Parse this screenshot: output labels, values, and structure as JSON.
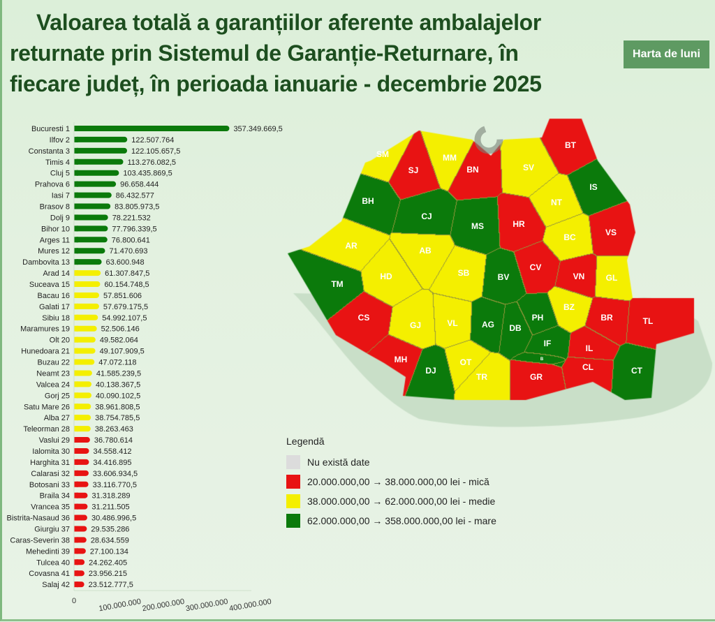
{
  "header": {
    "title_lines": [
      "Valoarea totală a garanțiilor aferente ambalajelor",
      "returnate prin Sistemul de Garanție-Returnare, în",
      "fiecare județ, în perioada ianuarie - decembrie 2025"
    ],
    "button_label": "Harta de luni"
  },
  "colors": {
    "mica": "#e81313",
    "medie": "#f4ef00",
    "mare": "#0b7a0b",
    "no_data": "#dcdcdc",
    "title": "#1d4e1f",
    "button": "#5e9a62"
  },
  "chart_data": {
    "type": "bar",
    "orientation": "horizontal",
    "categories": [
      "Bucuresti 1",
      "Ilfov 2",
      "Constanta 3",
      "Timis 4",
      "Cluj 5",
      "Prahova 6",
      "Iasi 7",
      "Brasov 8",
      "Dolj 9",
      "Bihor 10",
      "Arges 11",
      "Mures 12",
      "Dambovita 13",
      "Arad 14",
      "Suceava 15",
      "Bacau 16",
      "Galati 17",
      "Sibiu 18",
      "Maramures 19",
      "Olt 20",
      "Hunedoara 21",
      "Buzau 22",
      "Neamt 23",
      "Valcea 24",
      "Gorj 25",
      "Satu Mare 26",
      "Alba 27",
      "Teleorman 28",
      "Vaslui 29",
      "Ialomita 30",
      "Harghita 31",
      "Calarasi 32",
      "Botosani 33",
      "Braila 34",
      "Vrancea 35",
      "Bistrita-Nasaud 36",
      "Giurgiu 37",
      "Caras-Severin 38",
      "Mehedinti 39",
      "Tulcea 40",
      "Covasna 41",
      "Salaj 42"
    ],
    "values": [
      357349669.5,
      122507764,
      122105657.5,
      113276082.5,
      103435869.5,
      96658444,
      86432577,
      83805973.5,
      78221532,
      77796339.5,
      76800641,
      71470693,
      63600948,
      61307847.5,
      60154748.5,
      57851606,
      57679175.5,
      54992107.5,
      52506146,
      49582064,
      49107909.5,
      47072118,
      41585239.5,
      40138367.5,
      40090102.5,
      38961808.5,
      38754785.5,
      38263463,
      36780614,
      34558412,
      34416895,
      33606934.5,
      33116770.5,
      31318289,
      31211505,
      30486996.5,
      29535286,
      28634559,
      27100134,
      24262405,
      23956215,
      23512777.5
    ],
    "value_labels": [
      "357.349.669,5",
      "122.507.764",
      "122.105.657,5",
      "113.276.082,5",
      "103.435.869,5",
      "96.658.444",
      "86.432.577",
      "83.805.973,5",
      "78.221.532",
      "77.796.339,5",
      "76.800.641",
      "71.470.693",
      "63.600.948",
      "61.307.847,5",
      "60.154.748,5",
      "57.851.606",
      "57.679.175,5",
      "54.992.107,5",
      "52.506.146",
      "49.582.064",
      "49.107.909,5",
      "47.072.118",
      "41.585.239,5",
      "40.138.367,5",
      "40.090.102,5",
      "38.961.808,5",
      "38.754.785,5",
      "38.263.463",
      "36.780.614",
      "34.558.412",
      "34.416.895",
      "33.606.934,5",
      "33.116.770,5",
      "31.318.289",
      "31.211.505",
      "30.486.996,5",
      "29.535.286",
      "28.634.559",
      "27.100.134",
      "24.262.405",
      "23.956.215",
      "23.512.777,5"
    ],
    "xlim": [
      0,
      400000000
    ],
    "xticks": [
      0,
      100000000,
      200000000,
      300000000,
      400000000
    ],
    "xtick_labels": [
      "0",
      "100.000.000",
      "200.000.000",
      "300.000.000",
      "400.000.000"
    ],
    "grid": false
  },
  "map": {
    "counties": [
      {
        "code": "B",
        "class": "mare"
      },
      {
        "code": "IF",
        "class": "mare"
      },
      {
        "code": "CT",
        "class": "mare"
      },
      {
        "code": "TM",
        "class": "mare"
      },
      {
        "code": "CJ",
        "class": "mare"
      },
      {
        "code": "PH",
        "class": "mare"
      },
      {
        "code": "IS",
        "class": "mare"
      },
      {
        "code": "BV",
        "class": "mare"
      },
      {
        "code": "DJ",
        "class": "mare"
      },
      {
        "code": "BH",
        "class": "mare"
      },
      {
        "code": "AG",
        "class": "mare"
      },
      {
        "code": "MS",
        "class": "mare"
      },
      {
        "code": "DB",
        "class": "mare"
      },
      {
        "code": "AR",
        "class": "medie"
      },
      {
        "code": "SV",
        "class": "medie"
      },
      {
        "code": "BC",
        "class": "medie"
      },
      {
        "code": "GL",
        "class": "medie"
      },
      {
        "code": "SB",
        "class": "medie"
      },
      {
        "code": "MM",
        "class": "medie"
      },
      {
        "code": "OT",
        "class": "medie"
      },
      {
        "code": "HD",
        "class": "medie"
      },
      {
        "code": "BZ",
        "class": "medie"
      },
      {
        "code": "NT",
        "class": "medie"
      },
      {
        "code": "VL",
        "class": "medie"
      },
      {
        "code": "GJ",
        "class": "medie"
      },
      {
        "code": "SM",
        "class": "medie"
      },
      {
        "code": "AB",
        "class": "medie"
      },
      {
        "code": "TR",
        "class": "medie"
      },
      {
        "code": "VS",
        "class": "mica"
      },
      {
        "code": "IL",
        "class": "mica"
      },
      {
        "code": "HR",
        "class": "mica"
      },
      {
        "code": "CL",
        "class": "mica"
      },
      {
        "code": "BT",
        "class": "mica"
      },
      {
        "code": "BR",
        "class": "mica"
      },
      {
        "code": "VN",
        "class": "mica"
      },
      {
        "code": "BN",
        "class": "mica"
      },
      {
        "code": "GR",
        "class": "mica"
      },
      {
        "code": "CS",
        "class": "mica"
      },
      {
        "code": "MH",
        "class": "mica"
      },
      {
        "code": "TL",
        "class": "mica"
      },
      {
        "code": "CV",
        "class": "mica"
      },
      {
        "code": "SJ",
        "class": "mica"
      }
    ]
  },
  "legend": {
    "title": "Legendă",
    "items": [
      {
        "label": "Nu există date",
        "class": "no_data"
      },
      {
        "label": "20.000.000,00 → 38.000.000,00 lei - mică",
        "class": "mica"
      },
      {
        "label": "38.000.000,00 → 62.000.000,00 lei - medie",
        "class": "medie"
      },
      {
        "label": "62.000.000,00 → 358.000.000,00 lei - mare",
        "class": "mare"
      }
    ]
  }
}
